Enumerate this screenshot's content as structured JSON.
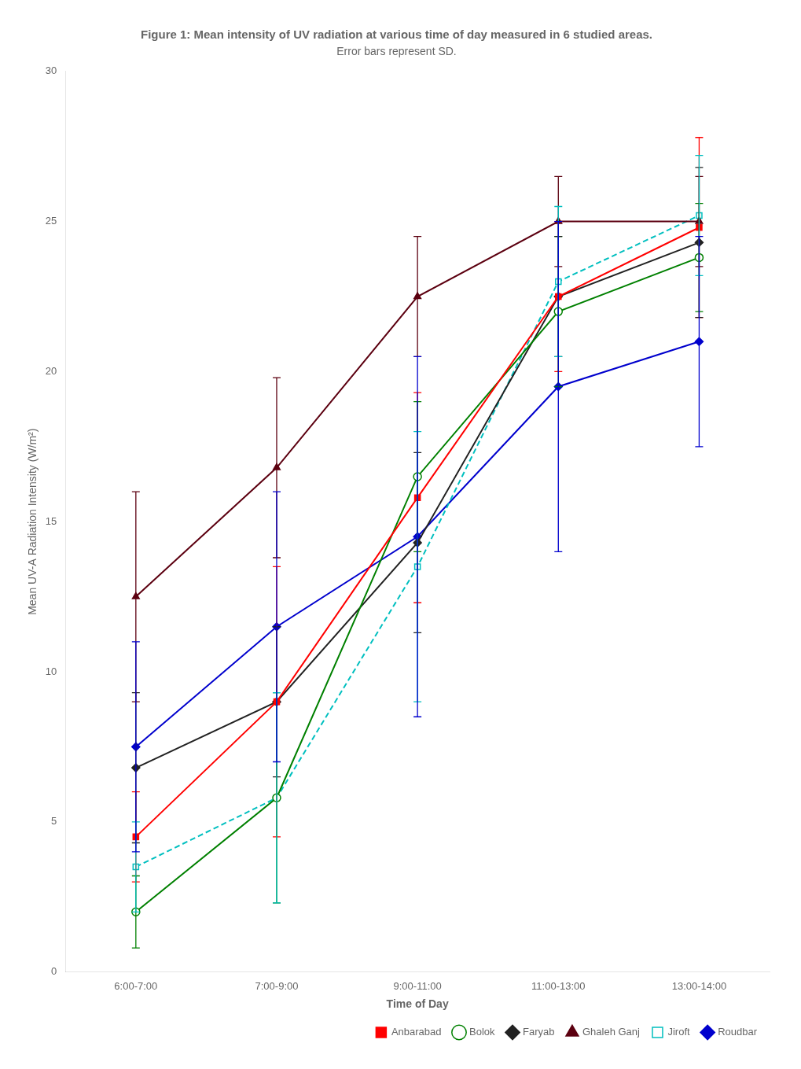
{
  "chart_data": {
    "type": "line",
    "title": "Figure 1: Mean intensity of UV radiation at various time of day measured in 6 studied areas.",
    "subtitle": "Error bars represent SD.",
    "xlabel": "Time of Day",
    "ylabel": "Mean UV-A Radiation Intensity (W/m²)",
    "categories": [
      "6:00-7:00",
      "7:00-9:00",
      "9:00-11:00",
      "11:00-13:00",
      "13:00-14:00"
    ],
    "series": [
      {
        "name": "Anbarabad",
        "color": "#FF0000",
        "marker": "square",
        "line_style": "solid",
        "values": [
          4.5,
          9.0,
          15.8,
          22.5,
          24.8
        ],
        "errors": [
          1.5,
          4.5,
          3.5,
          2.5,
          3.0
        ]
      },
      {
        "name": "Bolok",
        "color": "#008000",
        "marker": "open_circle",
        "line_style": "solid",
        "values": [
          2.0,
          5.8,
          16.5,
          22.0,
          23.8
        ],
        "errors": [
          1.2,
          3.5,
          2.5,
          2.5,
          1.8
        ]
      },
      {
        "name": "Faryab",
        "color": "#222222",
        "marker": "diamond",
        "line_style": "solid",
        "values": [
          6.8,
          9.0,
          14.3,
          22.5,
          24.3
        ],
        "errors": [
          2.5,
          2.5,
          3.0,
          2.0,
          2.5
        ]
      },
      {
        "name": "Ghaleh Ganj",
        "color": "#5C0010",
        "marker": "triangle",
        "line_style": "solid",
        "values": [
          12.5,
          16.8,
          22.5,
          25.0,
          25.0
        ],
        "errors": [
          3.5,
          3.0,
          2.0,
          1.5,
          1.5
        ]
      },
      {
        "name": "Jiroft",
        "color": "#00BFBF",
        "marker": "open_square",
        "line_style": "dashed",
        "values": [
          3.5,
          5.8,
          13.5,
          23.0,
          25.2
        ],
        "errors": [
          1.5,
          3.5,
          4.5,
          2.5,
          2.0
        ]
      },
      {
        "name": "Roudbar",
        "color": "#0000CD",
        "marker": "diamond",
        "line_style": "solid",
        "values": [
          7.5,
          11.5,
          14.5,
          19.5,
          21.0
        ],
        "errors": [
          3.5,
          4.5,
          6.0,
          5.5,
          3.5
        ]
      }
    ],
    "ylim": [
      0,
      30
    ],
    "yticks": [
      0,
      5,
      10,
      15,
      20,
      25,
      30
    ],
    "grid": false,
    "legend": "lower right"
  }
}
